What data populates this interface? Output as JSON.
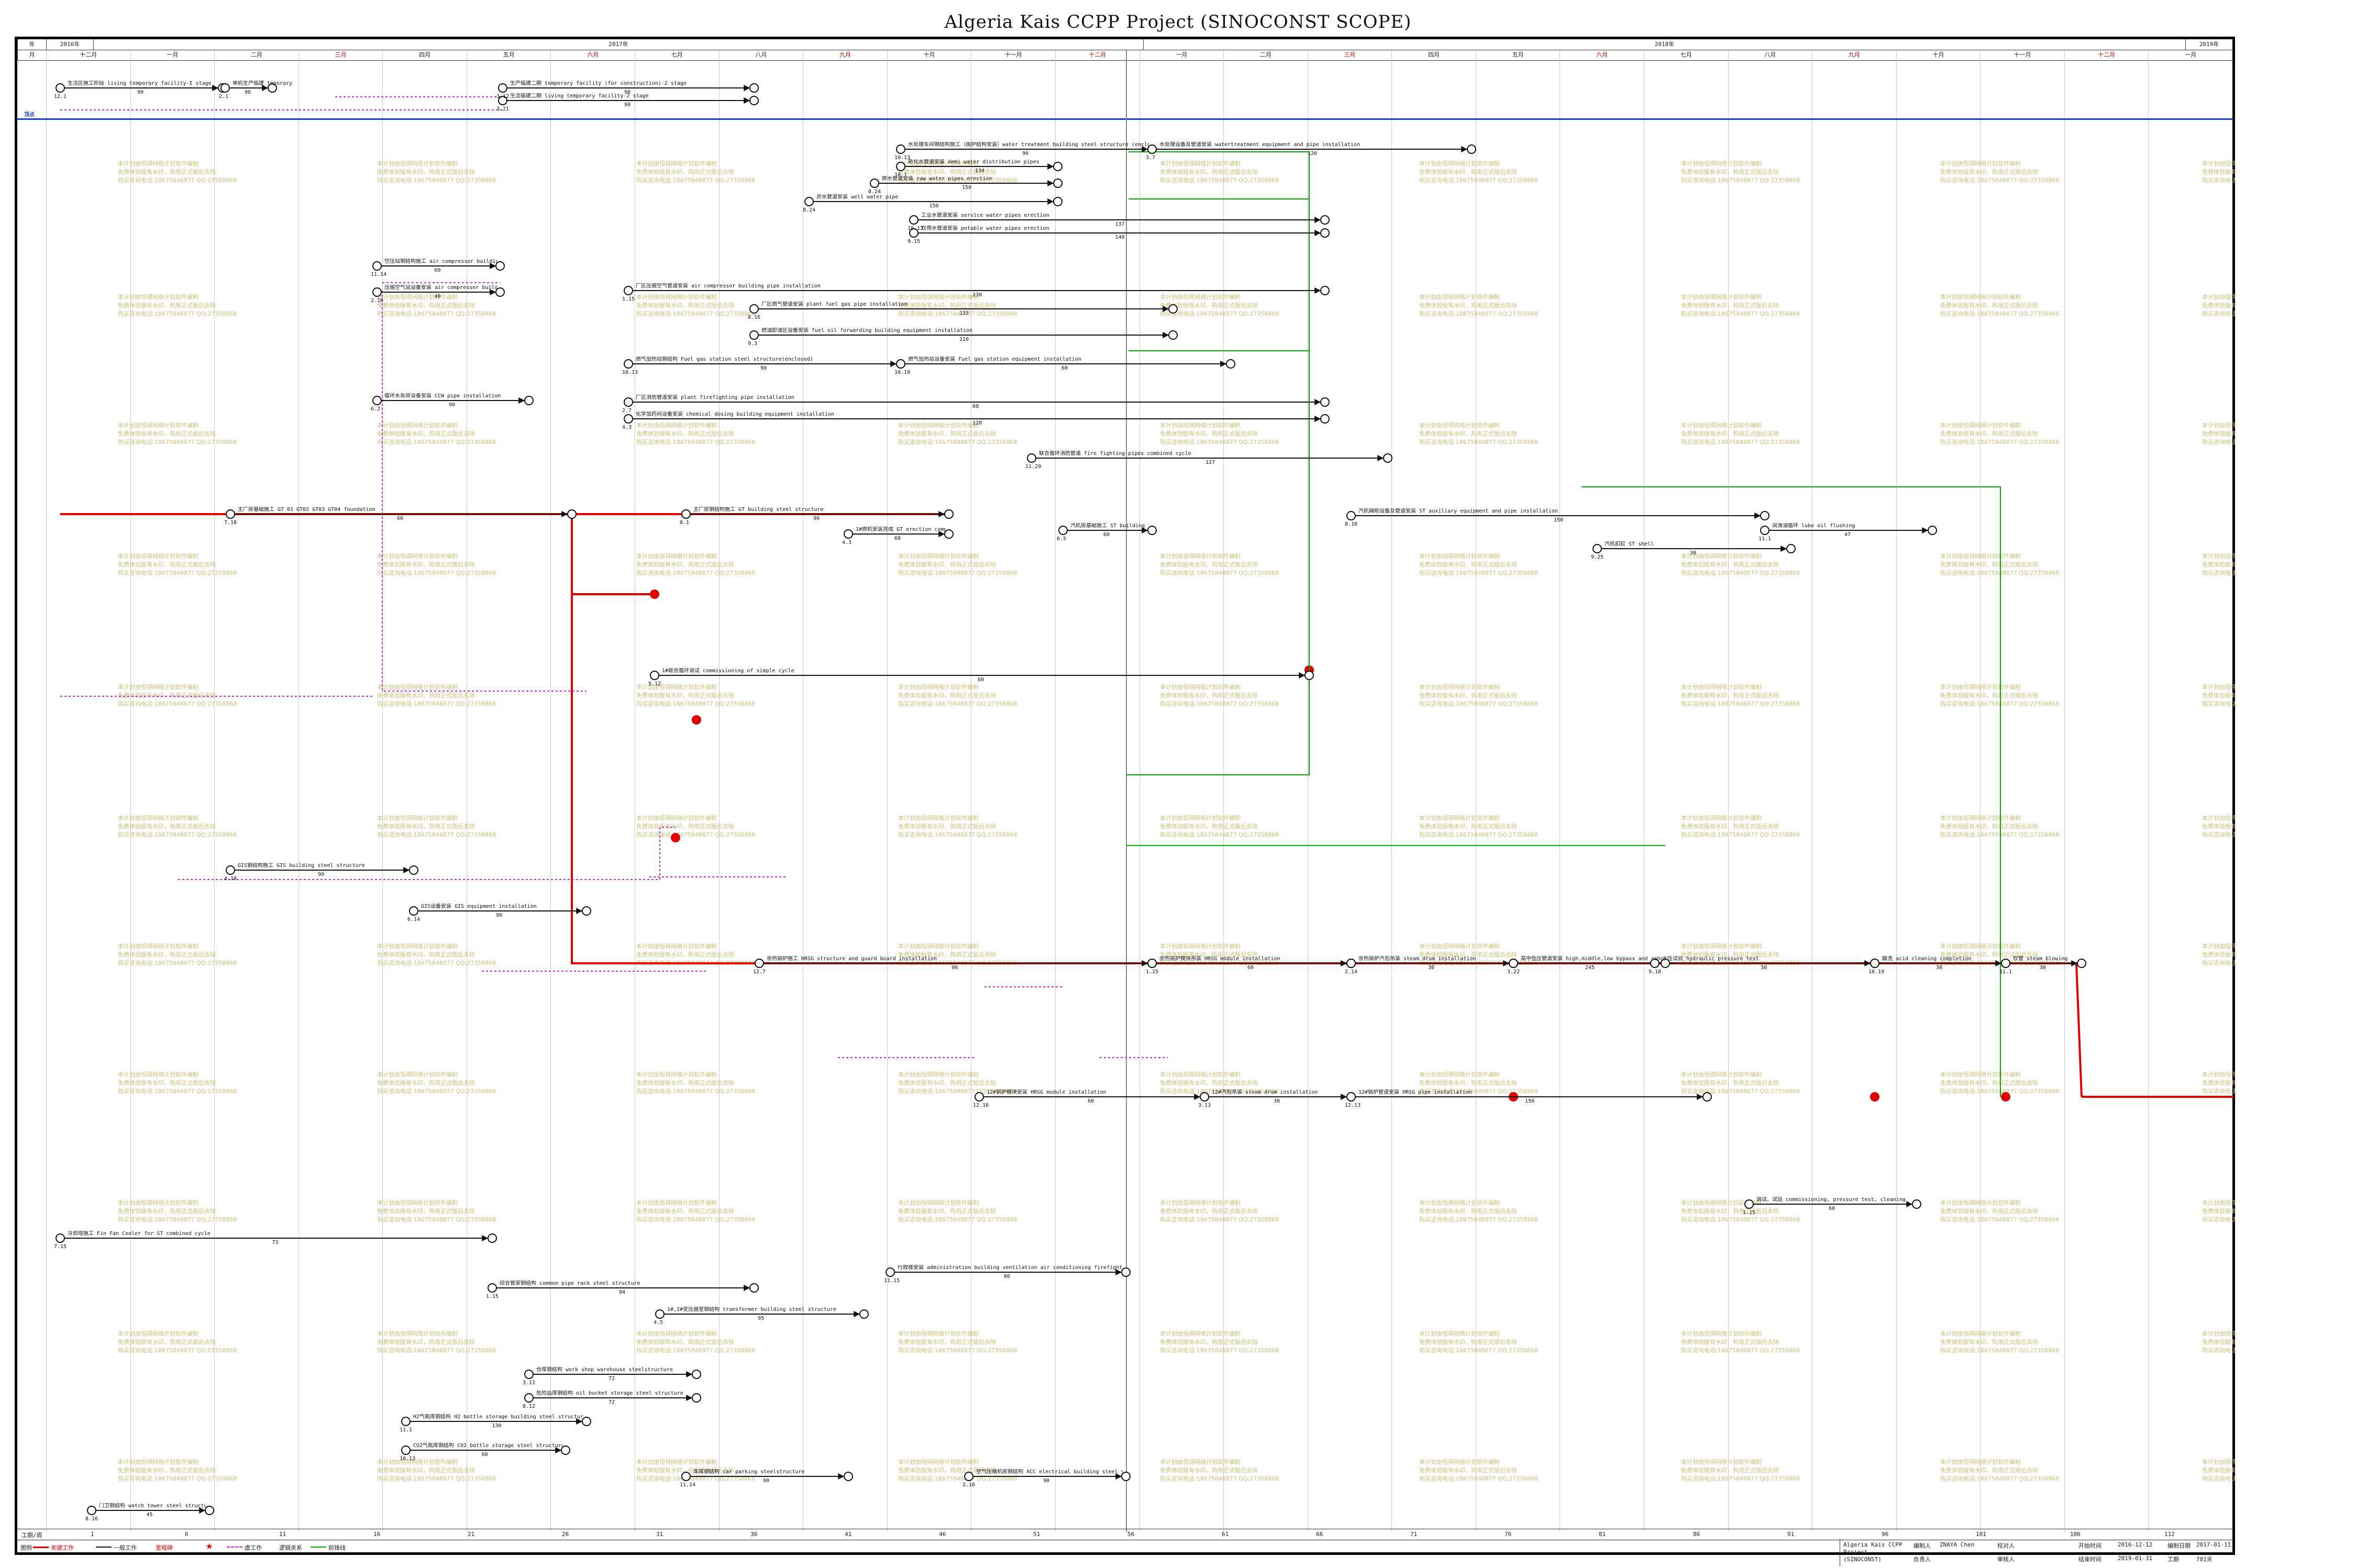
{
  "title": "Algeria Kais CCPP Project (SINOCONST SCOPE)",
  "header": {
    "year_row_label": "年",
    "month_row_label": "月",
    "years": [
      "2016年",
      "2017年",
      "2018年",
      "2019年"
    ],
    "months": [
      "十二月",
      "一月",
      "二月",
      "三月",
      "四月",
      "五月",
      "六月",
      "七月",
      "八月",
      "九月",
      "十月",
      "十一月",
      "十二月",
      "一月",
      "二月",
      "三月",
      "四月",
      "五月",
      "六月",
      "七月",
      "八月",
      "九月",
      "十月",
      "十一月",
      "十二月",
      "一月"
    ]
  },
  "left_labels": {
    "milestone_row": "顶点"
  },
  "activities": [
    {
      "id": "a1",
      "label": "生活区施工阶段 living temporary facility-I stage",
      "duration": "90"
    },
    {
      "id": "a2",
      "label": "单机生产临建 tmporary facility-for construction-I stage",
      "duration": "90"
    },
    {
      "id": "a3",
      "label": "生产临建二期 temporary facility (for construction)-2 stage",
      "duration": "90"
    },
    {
      "id": "a4",
      "label": "生活临建二期 living temporary facility-2 stage",
      "duration": "90"
    },
    {
      "id": "a5",
      "label": "水处理车间钢结构施工（围护结构安装）water treatment building steel structure (enclosed)",
      "duration": "90"
    },
    {
      "id": "a6",
      "label": "水处理设备及管道安装 watertreatment equipment and pipe installation",
      "duration": "120"
    },
    {
      "id": "a7",
      "label": "新化水管道安装 demi water distribution pipes",
      "duration": "134"
    },
    {
      "id": "a8",
      "label": "原水管道安装 raw water pipes erection",
      "duration": "150"
    },
    {
      "id": "a9",
      "label": "井水管道安装 well water pipe",
      "duration": "150"
    },
    {
      "id": "a10",
      "label": "工业水管道安装 service water pipes erection",
      "duration": "137"
    },
    {
      "id": "a11",
      "label": "饮用水管道安装 potable water pipes erection",
      "duration": "140"
    },
    {
      "id": "a12",
      "label": "空压站钢结构施工 air compressor building ventilation air conditioning",
      "duration": "60"
    },
    {
      "id": "a13",
      "label": "压缩空气站设备安装 air compressor building equipment installation",
      "duration": "40"
    },
    {
      "id": "a14",
      "label": "厂区压缩空气管道安装 air compressor building pipe installation",
      "duration": "230"
    },
    {
      "id": "a15",
      "label": "厂区燃气管道安装 plant fuel gas pipe installation",
      "duration": "133"
    },
    {
      "id": "a16",
      "label": "燃油卸油区设备安装 fuel oil forwarding building equipment installation",
      "duration": "210"
    },
    {
      "id": "a17",
      "label": "燃气加热站钢结构 Fuel gas station steel structure(enclosed)",
      "duration": "90"
    },
    {
      "id": "a18",
      "label": "燃气加热站设备安装 Fuel gas station equipment installation",
      "duration": "60"
    },
    {
      "id": "a19",
      "label": "厂区消防管道安装 plant firefighting pipe installation",
      "duration": "60"
    },
    {
      "id": "a20",
      "label": "化学加药间设备安装 chemical dosing building equipment installation",
      "duration": "120"
    },
    {
      "id": "a21",
      "label": "循环水泵房设备安装 CCW pipe installation",
      "duration": "90"
    },
    {
      "id": "a22",
      "label": "联合循环消防管道 fire fighting pipes combined cycle",
      "duration": "127"
    },
    {
      "id": "a23",
      "label": "主厂房基础施工 GT 01 GT02 GT03 GT04 foundation",
      "duration": "60"
    },
    {
      "id": "a24",
      "label": "主厂房钢结构施工 GT building steel structure",
      "duration": "90"
    },
    {
      "id": "a25",
      "label": "1#燃机安装完成 GT erection completion",
      "duration": "60"
    },
    {
      "id": "a26",
      "label": "1#联合循环调试 commissioning of simple cycle",
      "duration": "60"
    },
    {
      "id": "a27",
      "label": "汽机房基础施工 ST building foundation",
      "duration": "60"
    },
    {
      "id": "a28",
      "label": "汽机辅助设备及管道安装 ST auxiliary equipment and pipe installation",
      "duration": "150"
    },
    {
      "id": "a29",
      "label": "汽机扣缸 ST shell",
      "duration": "30"
    },
    {
      "id": "a30",
      "label": "润滑油循环 lube oil flushing",
      "duration": "47"
    },
    {
      "id": "a31",
      "label": "余热锅炉施工 HRSG structure and guard board installation",
      "duration": "90"
    },
    {
      "id": "a32",
      "label": "余热锅炉模块吊装 HRSG module installation",
      "duration": "60"
    },
    {
      "id": "a33",
      "label": "余热锅炉汽包吊装 steam drum installation",
      "duration": "30"
    },
    {
      "id": "a34",
      "label": "高中低压管道安装 high,middle,low bypass and reheat steam pipe installation",
      "duration": "245"
    },
    {
      "id": "a35",
      "label": "水压试验 hydraulic pressure test",
      "duration": "30"
    },
    {
      "id": "a36",
      "label": "酸洗 acid cleaning completion",
      "duration": "30"
    },
    {
      "id": "a37",
      "label": "吹管 steam blowing",
      "duration": "30"
    },
    {
      "id": "a38",
      "label": "12#锅炉模块安装 HRSG module installation",
      "duration": "60"
    },
    {
      "id": "a39",
      "label": "12#汽包吊装 steam drum installation",
      "duration": "30"
    },
    {
      "id": "a40",
      "label": "12#锅炉管道安装 HRSG pipe installation",
      "duration": "150"
    },
    {
      "id": "a41",
      "label": "GIS钢结构施工 GIS building steel structure",
      "duration": "90"
    },
    {
      "id": "a42",
      "label": "GIS设备安装 GIS equipment installation",
      "duration": "90"
    },
    {
      "id": "a43",
      "label": "冷却塔施工 Fin Fan Cooler for ST combined cycle",
      "duration": "73"
    },
    {
      "id": "a44",
      "label": "行政楼安装 administration building ventilation air conditioning firefighting system",
      "duration": "86"
    },
    {
      "id": "a45",
      "label": "综合管架钢结构 common pipe rack steel structure",
      "duration": "94"
    },
    {
      "id": "a46",
      "label": "1#,2#变压器室钢结构 transformer building steel structure",
      "duration": "95"
    },
    {
      "id": "a47",
      "label": "仓库钢结构 work shop warehouse steelstructure",
      "duration": "72"
    },
    {
      "id": "a48",
      "label": "危险品库钢结构 oil bucket storage steel structure",
      "duration": "72"
    },
    {
      "id": "a49",
      "label": "H2气瓶库钢结构 H2 bottle storage building steel structure",
      "duration": "130"
    },
    {
      "id": "a50",
      "label": "CO2气瓶库钢结构 CO2 bottle storage steel structure",
      "duration": "60"
    },
    {
      "id": "a51",
      "label": "车库钢结构 car parking steelstructure",
      "duration": "90"
    },
    {
      "id": "a52",
      "label": "空气压缩机房钢结构 ACC electrical building steel structure",
      "duration": "90"
    },
    {
      "id": "a53",
      "label": "调试、试运 commissioning, pressure test, cleaning",
      "duration": "60"
    },
    {
      "id": "a54",
      "label": "门卫钢结构 watch tower steel structure",
      "duration": "45"
    }
  ],
  "dates": [
    "12.1",
    "2.1",
    "3.11",
    "3.12",
    "3.21",
    "8.12",
    "10.13",
    "11.1",
    "3.7",
    "10.1",
    "8.24",
    "10.13",
    "9.15",
    "11.14",
    "2.16",
    "1.15",
    "8.16",
    "9.3",
    "10.13",
    "10.10",
    "2.7",
    "4.3",
    "6.2",
    "7.18",
    "8.1",
    "11.29",
    "4.3",
    "5.12",
    "6.5",
    "8.10",
    "9.25",
    "11.1",
    "12.7",
    "1.15",
    "2.14",
    "3.22",
    "9.18",
    "10.19",
    "11.1",
    "12.16",
    "3.13",
    "12.13",
    "4.10",
    "6.14",
    "7.15",
    "11.15",
    "1.15",
    "4.5",
    "6.17"
  ],
  "watermark": {
    "line1": "本计划由恒得网络计划软件编制",
    "line2": "免费体验版有水印，购用正式版后去除",
    "line3": "购买咨询电话:18675848877 QQ:27358868"
  },
  "footer": {
    "row_label": "工期/周",
    "week_numbers": [
      "1",
      "6",
      "11",
      "16",
      "21",
      "26",
      "31",
      "36",
      "41",
      "46",
      "51",
      "56",
      "61",
      "66",
      "71",
      "76",
      "81",
      "86",
      "91",
      "96",
      "101",
      "106",
      "112"
    ],
    "legend_label": "图例",
    "legend_items": [
      "关键工作",
      "一般工作",
      "里程碑",
      "虚工作",
      "逻辑关系",
      "前锋线"
    ],
    "project_name": "Algeria Kais CCPP Project (SINOCONST)",
    "editor_label": "编制人",
    "editor_value": "ZNAYA Chen",
    "checker_label": "校对人",
    "start_label": "开始时间",
    "start_value": "2016-12-12",
    "make_label": "编制日期",
    "make_value": "2017-01-11",
    "owner_label": "负责人",
    "reviewer_label": "审核人",
    "end_label": "结束时间",
    "end_value": "2019-01-31",
    "span_label": "工期",
    "span_value": "781天"
  }
}
